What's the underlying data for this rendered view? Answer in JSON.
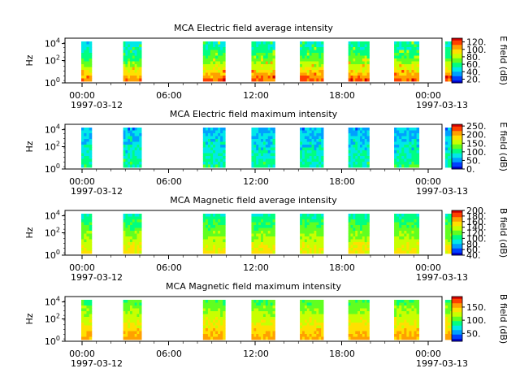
{
  "colors": {
    "colormap": [
      "#0000c8",
      "#0040ff",
      "#00a0ff",
      "#00e8e8",
      "#00ff80",
      "#60ff20",
      "#c8ff00",
      "#ffe000",
      "#ffa000",
      "#ff4000",
      "#d00000"
    ]
  },
  "time_axis": {
    "tick_labels": [
      "00:00",
      "06:00",
      "12:00",
      "18:00",
      "00:00"
    ],
    "date_labels": [
      "1997-03-12",
      "1997-03-13"
    ]
  },
  "y_axis": {
    "label": "Hz",
    "scale": "log",
    "tick_labels": [
      "10",
      "10",
      "10"
    ],
    "tick_exponents": [
      "0",
      "2",
      "4"
    ]
  },
  "chart_data": [
    {
      "type": "heatmap",
      "title": "MCA  Electric field average intensity",
      "ylabel": "Hz",
      "colorbar_label": "E field (dB)",
      "colorbar_ticks": [
        "120.",
        "100.",
        "80.",
        "60.",
        "40.",
        "20."
      ],
      "colorbar_tick_values": [
        120,
        100,
        80,
        60,
        40,
        20
      ],
      "colorbar_range": [
        10,
        130
      ],
      "xlim": [
        "1997-03-12 00:00",
        "1997-03-13 00:00"
      ],
      "ylim": [
        1,
        30000
      ],
      "data_blocks": [
        [
          "00:00",
          "00:40"
        ],
        [
          "02:40",
          "03:50"
        ],
        [
          "07:45",
          "09:10"
        ],
        [
          "10:50",
          "12:20"
        ],
        [
          "13:55",
          "15:25"
        ],
        [
          "17:00",
          "18:20"
        ],
        [
          "19:55",
          "21:30"
        ],
        [
          "23:10",
          "24:00"
        ]
      ],
      "colour_note": "high (red) near 1e0-1e1 Hz, medium-green to cyan near 1e3-1e4 Hz"
    },
    {
      "type": "heatmap",
      "title": "MCA  Electric field maximum intensity",
      "ylabel": "Hz",
      "colorbar_label": "E field (dB)",
      "colorbar_ticks": [
        "250.",
        "200.",
        "150.",
        "100.",
        "50.",
        "0."
      ],
      "colorbar_tick_values": [
        250,
        200,
        150,
        100,
        50,
        0
      ],
      "colorbar_range": [
        0,
        260
      ],
      "xlim": [
        "1997-03-12 00:00",
        "1997-03-13 00:00"
      ],
      "ylim": [
        1,
        30000
      ],
      "data_blocks": [
        [
          "00:00",
          "00:40"
        ],
        [
          "02:40",
          "03:50"
        ],
        [
          "07:45",
          "09:10"
        ],
        [
          "10:50",
          "12:20"
        ],
        [
          "13:55",
          "15:25"
        ],
        [
          "17:00",
          "18:20"
        ],
        [
          "19:55",
          "21:30"
        ],
        [
          "23:10",
          "24:00"
        ]
      ],
      "colour_note": "mostly blue/cyan"
    },
    {
      "type": "heatmap",
      "title": "MCA  Magnetic field average intensity",
      "ylabel": "Hz",
      "colorbar_label": "B field (dB)",
      "colorbar_ticks": [
        "200.",
        "180.",
        "160.",
        "140.",
        "120.",
        "100.",
        "80.",
        "60.",
        "40."
      ],
      "colorbar_tick_values": [
        200,
        180,
        160,
        140,
        120,
        100,
        80,
        60,
        40
      ],
      "colorbar_range": [
        40,
        200
      ],
      "xlim": [
        "1997-03-12 00:00",
        "1997-03-13 00:00"
      ],
      "ylim": [
        1,
        30000
      ],
      "data_blocks": [
        [
          "00:00",
          "00:40"
        ],
        [
          "02:40",
          "03:50"
        ],
        [
          "07:45",
          "09:10"
        ],
        [
          "10:50",
          "12:20"
        ],
        [
          "13:55",
          "15:25"
        ],
        [
          "17:00",
          "18:20"
        ],
        [
          "19:55",
          "21:30"
        ],
        [
          "23:10",
          "24:00"
        ]
      ],
      "colour_note": "yellow-green at low frequencies, cyan at high"
    },
    {
      "type": "heatmap",
      "title": "MCA  Magnetic field maximum intensity",
      "ylabel": "Hz",
      "colorbar_label": "B field (dB)",
      "colorbar_ticks": [
        "150.",
        "100.",
        "50."
      ],
      "colorbar_tick_values": [
        150,
        100,
        50
      ],
      "colorbar_range": [
        20,
        190
      ],
      "xlim": [
        "1997-03-12 00:00",
        "1997-03-13 00:00"
      ],
      "ylim": [
        1,
        30000
      ],
      "data_blocks": [
        [
          "00:00",
          "00:40"
        ],
        [
          "02:40",
          "03:50"
        ],
        [
          "07:45",
          "09:10"
        ],
        [
          "10:50",
          "12:20"
        ],
        [
          "13:55",
          "15:25"
        ],
        [
          "17:00",
          "18:20"
        ],
        [
          "19:55",
          "21:30"
        ],
        [
          "23:10",
          "24:00"
        ]
      ],
      "colour_note": "yellow at low frequencies, green/cyan at high"
    }
  ]
}
